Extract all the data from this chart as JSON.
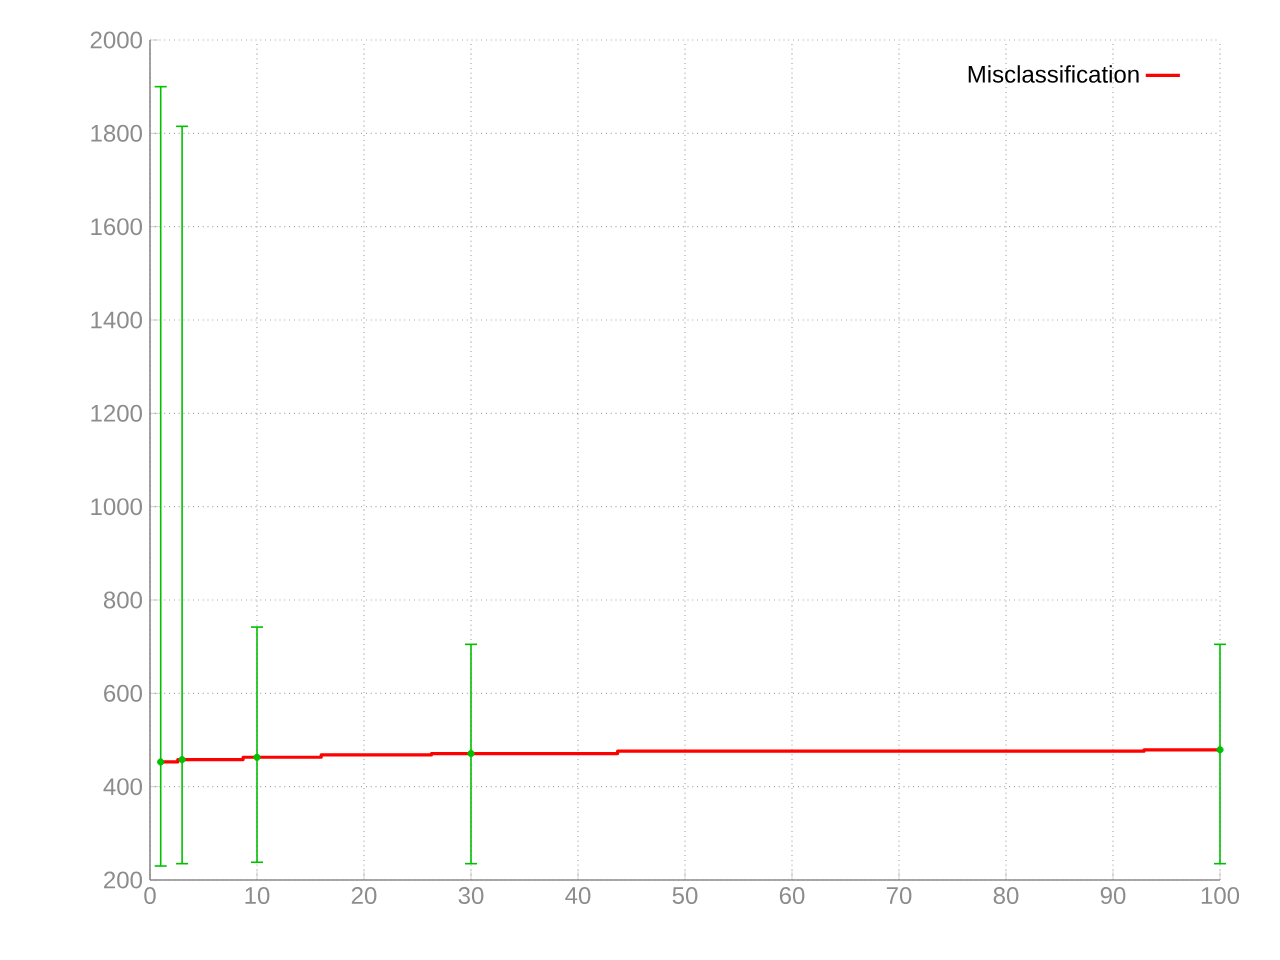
{
  "chart_data": {
    "type": "step",
    "xlim": [
      0,
      100
    ],
    "ylim": [
      200,
      2000
    ],
    "xticks": [
      0,
      10,
      20,
      30,
      40,
      50,
      60,
      70,
      80,
      90,
      100
    ],
    "yticks": [
      200,
      400,
      600,
      800,
      1000,
      1200,
      1400,
      1600,
      1800,
      2000
    ],
    "grid": true,
    "legend": "top right",
    "series": [
      {
        "name": "Misclassification",
        "color": "#ff0000",
        "x": [
          1,
          2.6,
          8.7,
          16,
          26.3,
          43.7,
          92.9,
          100
        ],
        "values": [
          453,
          458,
          463,
          468,
          471,
          476,
          479,
          479
        ]
      },
      {
        "type": "scatter",
        "color": "#00c000",
        "marker": "circle",
        "x": [
          1,
          3,
          10,
          30,
          100
        ],
        "values": [
          453,
          458,
          463,
          471,
          479
        ],
        "errors": [
          [
            230,
            1900
          ],
          [
            235,
            1815
          ],
          [
            238,
            742
          ],
          [
            235,
            705
          ],
          [
            235,
            705
          ]
        ]
      }
    ]
  }
}
